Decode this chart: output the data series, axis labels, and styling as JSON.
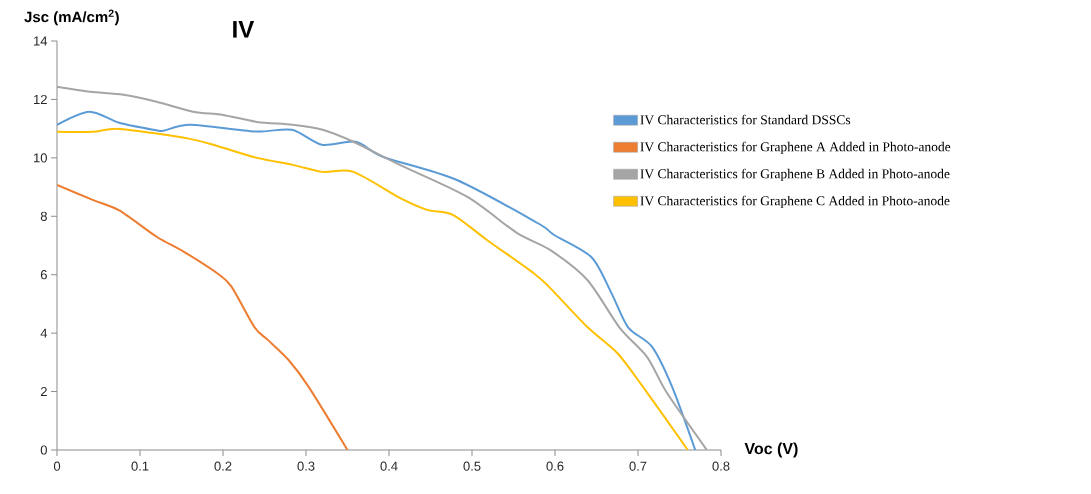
{
  "chart_data": {
    "type": "line",
    "title": "IV",
    "xlabel": "Voc (V)",
    "ylabel": "Jsc (mA/cm$^{2}$)",
    "xlim": [
      0,
      0.8
    ],
    "ylim": [
      0,
      14
    ],
    "xticks": [
      0,
      0.1,
      0.2,
      0.3,
      0.4,
      0.5,
      0.6,
      0.7,
      0.8
    ],
    "yticks": [
      0,
      2,
      4,
      6,
      8,
      10,
      12,
      14
    ],
    "legend": "right",
    "series": [
      {
        "name": "IV Characteristics for Standard DSSCs",
        "color": "#5b9bd5",
        "x": [
          0,
          0.039,
          0.075,
          0.116,
          0.128,
          0.161,
          0.238,
          0.283,
          0.319,
          0.36,
          0.393,
          0.481,
          0.579,
          0.599,
          0.644,
          0.668,
          0.688,
          0.717,
          0.741,
          0.769
        ],
        "values": [
          11.13,
          11.58,
          11.2,
          10.96,
          10.93,
          11.13,
          10.9,
          10.96,
          10.45,
          10.55,
          10.03,
          9.25,
          7.77,
          7.36,
          6.6,
          5.37,
          4.2,
          3.53,
          2.17,
          0
        ]
      },
      {
        "name": "IV Characteristics for Graphene A Added in Photo-anode",
        "color": "#ed7d31",
        "x": [
          0,
          0.043,
          0.075,
          0.12,
          0.152,
          0.193,
          0.21,
          0.238,
          0.254,
          0.279,
          0.303,
          0.35
        ],
        "values": [
          9.07,
          8.56,
          8.2,
          7.3,
          6.8,
          6.05,
          5.6,
          4.2,
          3.77,
          3.08,
          2.17,
          0
        ]
      },
      {
        "name": "IV Characteristics for Graphene B Added in Photo-anode",
        "color": "#a5a5a5",
        "x": [
          0,
          0.04,
          0.08,
          0.12,
          0.164,
          0.2,
          0.241,
          0.284,
          0.32,
          0.357,
          0.413,
          0.494,
          0.554,
          0.594,
          0.639,
          0.678,
          0.711,
          0.735,
          0.783
        ],
        "values": [
          12.43,
          12.26,
          12.16,
          11.92,
          11.58,
          11.47,
          11.23,
          11.13,
          10.96,
          10.55,
          9.76,
          8.67,
          7.43,
          6.85,
          5.82,
          4.18,
          3.18,
          1.95,
          0
        ]
      },
      {
        "name": "IV Characteristics for Graphene C Added in Photo-anode",
        "color": "#ffc000",
        "x": [
          0,
          0.043,
          0.076,
          0.16,
          0.196,
          0.241,
          0.284,
          0.32,
          0.357,
          0.413,
          0.446,
          0.477,
          0.518,
          0.574,
          0.594,
          0.639,
          0.675,
          0.706,
          0.76
        ],
        "values": [
          10.89,
          10.89,
          10.99,
          10.65,
          10.38,
          10.0,
          9.76,
          9.52,
          9.52,
          8.63,
          8.22,
          8.05,
          7.19,
          6.06,
          5.55,
          4.21,
          3.32,
          2.16,
          0
        ]
      }
    ]
  }
}
